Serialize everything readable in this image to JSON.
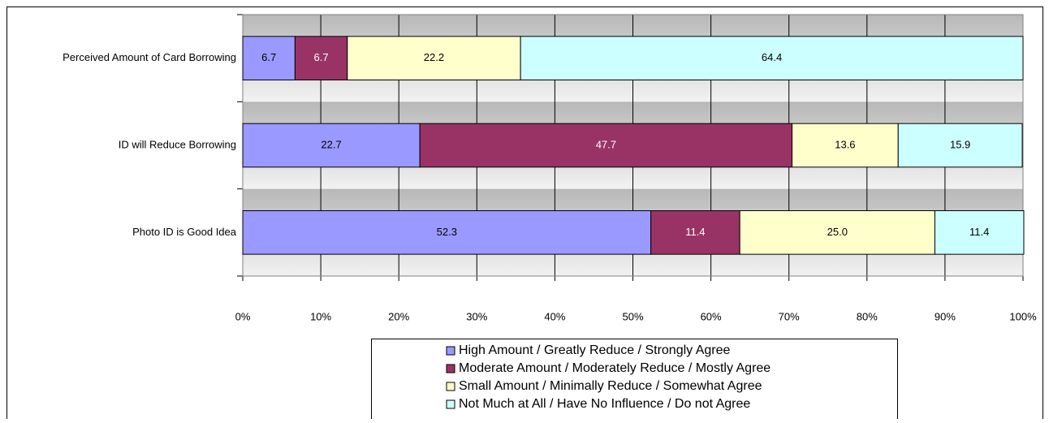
{
  "chart_data": {
    "type": "stacked_bar_horizontal",
    "categories": [
      "Perceived Amount of Card Borrowing",
      "ID will Reduce Borrowing",
      "Photo ID is Good Idea"
    ],
    "series": [
      {
        "name": "High Amount / Greatly Reduce / Strongly Agree",
        "color": "#9999ff",
        "values": [
          6.7,
          22.7,
          52.3
        ],
        "value_labels": [
          "6.7",
          "22.7",
          "52.3"
        ]
      },
      {
        "name": "Moderate Amount / Moderately Reduce / Mostly Agree",
        "color": "#993366",
        "values": [
          6.7,
          47.7,
          11.4
        ],
        "value_labels": [
          "6.7",
          "47.7",
          "11.4"
        ]
      },
      {
        "name": "Small Amount / Minimally Reduce / Somewhat Agree",
        "color": "#ffffcc",
        "values": [
          22.2,
          13.6,
          25.0
        ],
        "value_labels": [
          "22.2",
          "13.6",
          "25.0"
        ]
      },
      {
        "name": "Not Much at All / Have No Influence / Do not Agree",
        "color": "#ccffff",
        "values": [
          64.4,
          15.9,
          11.4
        ],
        "value_labels": [
          "64.4",
          "15.9",
          "11.4"
        ]
      }
    ],
    "xlim": [
      0,
      100
    ],
    "xticks": [
      {
        "value": 0,
        "label": "0%"
      },
      {
        "value": 10,
        "label": "10%"
      },
      {
        "value": 20,
        "label": "20%"
      },
      {
        "value": 30,
        "label": "30%"
      },
      {
        "value": 40,
        "label": "40%"
      },
      {
        "value": 50,
        "label": "50%"
      },
      {
        "value": 60,
        "label": "60%"
      },
      {
        "value": 70,
        "label": "70%"
      },
      {
        "value": 80,
        "label": "80%"
      },
      {
        "value": 90,
        "label": "90%"
      },
      {
        "value": 100,
        "label": "100%"
      }
    ],
    "grid": true,
    "legend": "bottom"
  }
}
